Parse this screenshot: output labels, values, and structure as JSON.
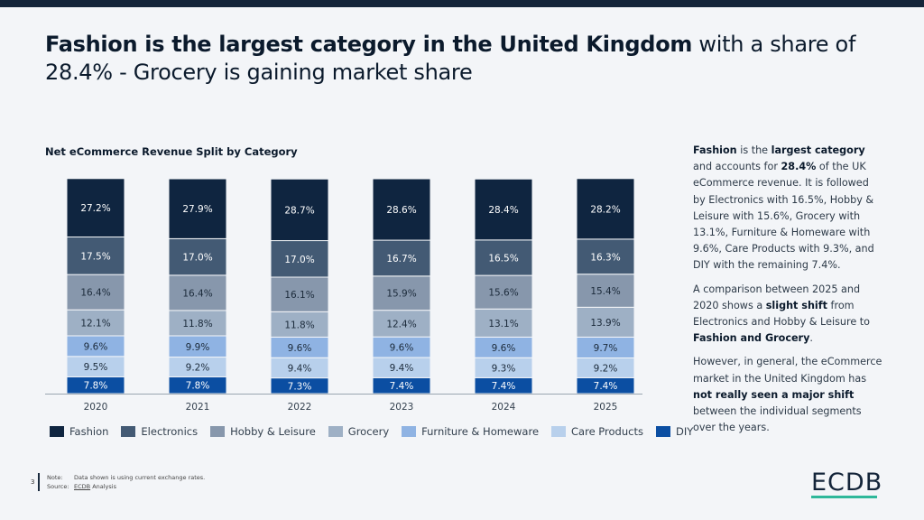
{
  "title": {
    "bold": "Fashion is the largest category in the United Kingdom",
    "rest": " with a share of 28.4% - Grocery is gaining market share"
  },
  "chart_heading": "Net eCommerce Revenue Split by Category",
  "side_text": {
    "p1": [
      {
        "t": "Fashion",
        "b": true
      },
      {
        "t": " is the "
      },
      {
        "t": "largest category",
        "b": true
      },
      {
        "t": " and accounts for "
      },
      {
        "t": "28.4%",
        "b": true
      },
      {
        "t": " of the UK eCommerce revenue. It is followed by Electronics with 16.5%, Hobby & Leisure with 15.6%, Grocery with 13.1%, Furniture & Homeware with 9.6%, Care Products with 9.3%, and DIY with the remaining 7.4%."
      }
    ],
    "p2": [
      {
        "t": "A comparison between 2025 and 2020 shows a "
      },
      {
        "t": "slight shift",
        "b": true
      },
      {
        "t": " from Electronics and Hobby & Leisure to "
      },
      {
        "t": "Fashion and Grocery",
        "b": true
      },
      {
        "t": "."
      }
    ],
    "p3": [
      {
        "t": "However, in general, the eCommerce market in the United Kingdom has "
      },
      {
        "t": "not really seen a major shift",
        "b": true
      },
      {
        "t": " between the individual segments over the years."
      }
    ]
  },
  "footer": {
    "page_number": "3",
    "note_label": "Note:",
    "note_text": "Data shown is using current exchange rates.",
    "source_label": "Source:",
    "source_link": "ECDB",
    "source_text": " Analysis"
  },
  "logo": "ECDB",
  "colors": {
    "Fashion": "#0f2540",
    "Electronics": "#435a74",
    "Hobby & Leisure": "#8797ac",
    "Grocery": "#9eb0c5",
    "Furniture & Homeware": "#8fb3e3",
    "Care Products": "#b8d0ec",
    "DIY": "#0b4ea2",
    "accent": "#2fb89a"
  },
  "chart_data": {
    "type": "bar",
    "stacked": true,
    "title": "Net eCommerce Revenue Split by Category",
    "categories": [
      "2020",
      "2021",
      "2022",
      "2023",
      "2024",
      "2025"
    ],
    "series": [
      {
        "name": "DIY",
        "values": [
          7.8,
          7.8,
          7.3,
          7.4,
          7.4,
          7.4
        ]
      },
      {
        "name": "Care Products",
        "values": [
          9.5,
          9.2,
          9.4,
          9.4,
          9.3,
          9.2
        ]
      },
      {
        "name": "Furniture & Homeware",
        "values": [
          9.6,
          9.9,
          9.6,
          9.6,
          9.6,
          9.7
        ]
      },
      {
        "name": "Grocery",
        "values": [
          12.1,
          11.8,
          11.8,
          12.4,
          13.1,
          13.9
        ]
      },
      {
        "name": "Hobby & Leisure",
        "values": [
          16.4,
          16.4,
          16.1,
          15.9,
          15.6,
          15.4
        ]
      },
      {
        "name": "Electronics",
        "values": [
          17.5,
          17.0,
          17.0,
          16.7,
          16.5,
          16.3
        ]
      },
      {
        "name": "Fashion",
        "values": [
          27.2,
          27.9,
          28.7,
          28.6,
          28.4,
          28.2
        ]
      }
    ],
    "legend_order": [
      "Fashion",
      "Electronics",
      "Hobby & Leisure",
      "Grocery",
      "Furniture & Homeware",
      "Care Products",
      "DIY"
    ],
    "value_suffix": "%",
    "ylim": [
      0,
      100
    ],
    "grid": false,
    "legend_position": "bottom"
  }
}
